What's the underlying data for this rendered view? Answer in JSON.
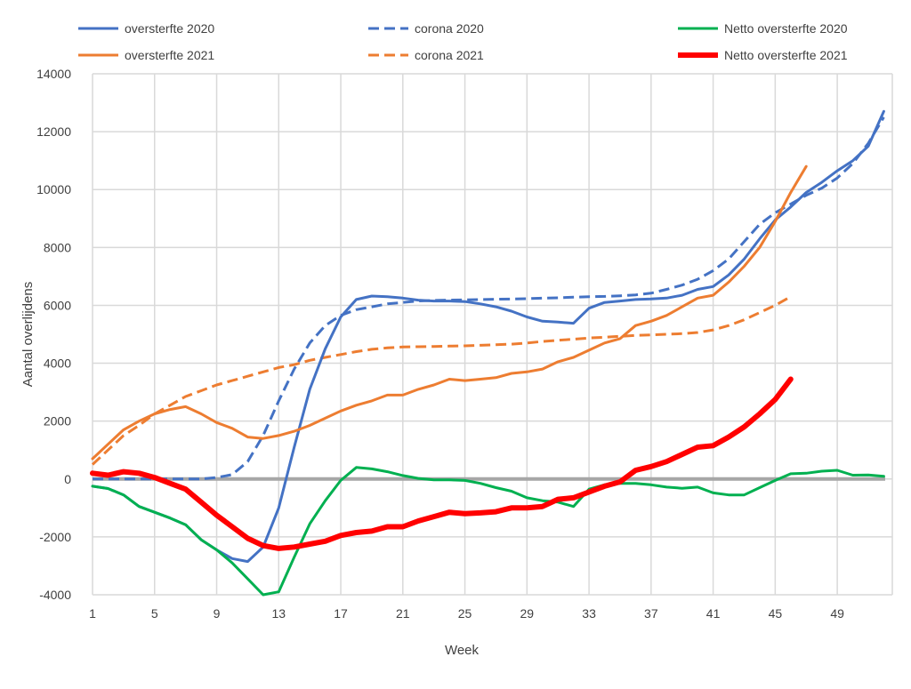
{
  "chart_data": {
    "type": "line",
    "title": "",
    "xlabel": "Week",
    "ylabel": "Aantal overlijdens",
    "xlim": [
      1,
      53
    ],
    "ylim": [
      -4000,
      14000
    ],
    "x_ticks": [
      1,
      5,
      9,
      13,
      17,
      21,
      25,
      29,
      33,
      37,
      41,
      45,
      49
    ],
    "y_ticks": [
      -4000,
      -2000,
      0,
      2000,
      4000,
      6000,
      8000,
      10000,
      12000,
      14000
    ],
    "grid": true,
    "legend_position": "top",
    "zero_line_color": "#A6A6A6",
    "series": [
      {
        "name": "oversterfte 2020",
        "color": "#4472C4",
        "dash": false,
        "width": 3,
        "values": [
          -250,
          -330,
          -550,
          -950,
          -1150,
          -1350,
          -1580,
          -2100,
          -2450,
          -2750,
          -2850,
          -2350,
          -1000,
          1100,
          3100,
          4500,
          5600,
          6200,
          6320,
          6300,
          6250,
          6180,
          6150,
          6150,
          6130,
          6050,
          5950,
          5800,
          5600,
          5450,
          5420,
          5380,
          5900,
          6100,
          6150,
          6200,
          6220,
          6250,
          6350,
          6550,
          6650,
          7050,
          7600,
          8300,
          8950,
          9400,
          9900,
          10250,
          10650,
          11000,
          11500,
          12700
        ]
      },
      {
        "name": "corona 2020",
        "color": "#4472C4",
        "dash": true,
        "width": 3,
        "values": [
          0,
          0,
          0,
          0,
          0,
          0,
          0,
          0,
          50,
          150,
          600,
          1500,
          2700,
          3800,
          4700,
          5300,
          5650,
          5850,
          5950,
          6050,
          6100,
          6150,
          6170,
          6180,
          6190,
          6200,
          6210,
          6220,
          6230,
          6250,
          6260,
          6280,
          6300,
          6310,
          6330,
          6360,
          6420,
          6550,
          6700,
          6900,
          7200,
          7600,
          8200,
          8800,
          9200,
          9500,
          9800,
          10050,
          10400,
          10900,
          11600,
          12500
        ]
      },
      {
        "name": "Netto oversterfte 2020",
        "color": "#00B050",
        "dash": false,
        "width": 3,
        "values": [
          -250,
          -330,
          -550,
          -950,
          -1150,
          -1350,
          -1580,
          -2100,
          -2450,
          -2900,
          -3450,
          -4000,
          -3900,
          -2700,
          -1550,
          -750,
          -50,
          400,
          350,
          250,
          120,
          20,
          -30,
          -30,
          -50,
          -150,
          -300,
          -420,
          -650,
          -750,
          -800,
          -950,
          -350,
          -200,
          -150,
          -150,
          -200,
          -280,
          -320,
          -280,
          -480,
          -550,
          -550,
          -300,
          -50,
          180,
          200,
          270,
          300,
          130,
          140,
          90
        ]
      },
      {
        "name": "oversterfte 2021",
        "color": "#ED7D31",
        "dash": false,
        "width": 3,
        "values": [
          700,
          1200,
          1700,
          2000,
          2250,
          2400,
          2500,
          2250,
          1950,
          1750,
          1450,
          1400,
          1500,
          1650,
          1850,
          2100,
          2350,
          2550,
          2700,
          2900,
          2900,
          3100,
          3250,
          3450,
          3400,
          3450,
          3500,
          3650,
          3700,
          3800,
          4050,
          4200,
          4450,
          4700,
          4850,
          5300,
          5450,
          5650,
          5950,
          6250,
          6350,
          6800,
          7350,
          8000,
          8900,
          9900,
          10800
        ]
      },
      {
        "name": "corona 2021",
        "color": "#ED7D31",
        "dash": true,
        "width": 3,
        "values": [
          500,
          1000,
          1500,
          1850,
          2250,
          2550,
          2850,
          3050,
          3250,
          3400,
          3550,
          3700,
          3850,
          3950,
          4100,
          4200,
          4300,
          4400,
          4480,
          4530,
          4560,
          4570,
          4580,
          4590,
          4600,
          4620,
          4640,
          4660,
          4700,
          4750,
          4790,
          4830,
          4870,
          4900,
          4930,
          4960,
          4980,
          5000,
          5020,
          5060,
          5150,
          5300,
          5500,
          5750,
          6000,
          6300
        ]
      },
      {
        "name": "Netto oversterfte 2021",
        "color": "#FF0000",
        "dash": false,
        "width": 6,
        "values": [
          200,
          130,
          250,
          200,
          50,
          -150,
          -350,
          -800,
          -1250,
          -1650,
          -2050,
          -2300,
          -2400,
          -2350,
          -2250,
          -2150,
          -1950,
          -1850,
          -1800,
          -1650,
          -1650,
          -1450,
          -1300,
          -1150,
          -1200,
          -1170,
          -1130,
          -1000,
          -1000,
          -950,
          -700,
          -650,
          -450,
          -250,
          -100,
          300,
          430,
          600,
          850,
          1100,
          1150,
          1450,
          1800,
          2250,
          2750,
          3450
        ]
      }
    ]
  }
}
